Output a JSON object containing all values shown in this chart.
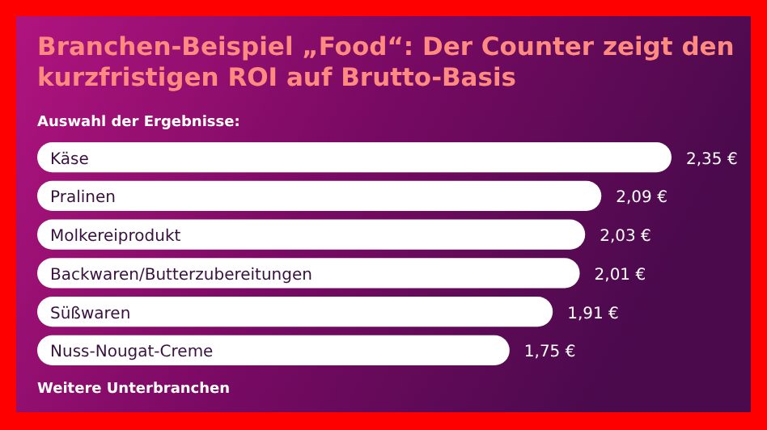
{
  "chart_data": {
    "type": "bar",
    "orientation": "horizontal",
    "title": "Branchen-Beispiel „Food“: Der Counter zeigt den kurzfristigen ROI auf Brutto-Basis",
    "subtitle": "Auswahl der Ergebnisse:",
    "categories": [
      "Käse",
      "Pralinen",
      "Molkereiprodukt",
      "Backwaren/Butterzubereitungen",
      "Süßwaren",
      "Nuss-Nougat-Creme"
    ],
    "values": [
      2.35,
      2.09,
      2.03,
      2.01,
      1.91,
      1.75
    ],
    "value_labels": [
      "2,35 €",
      "2,09 €",
      "2,03 €",
      "2,01 €",
      "1,91 €",
      "1,75 €"
    ],
    "color": "#ffffff",
    "annotations": [
      "Weitere Unterbranchen"
    ]
  }
}
